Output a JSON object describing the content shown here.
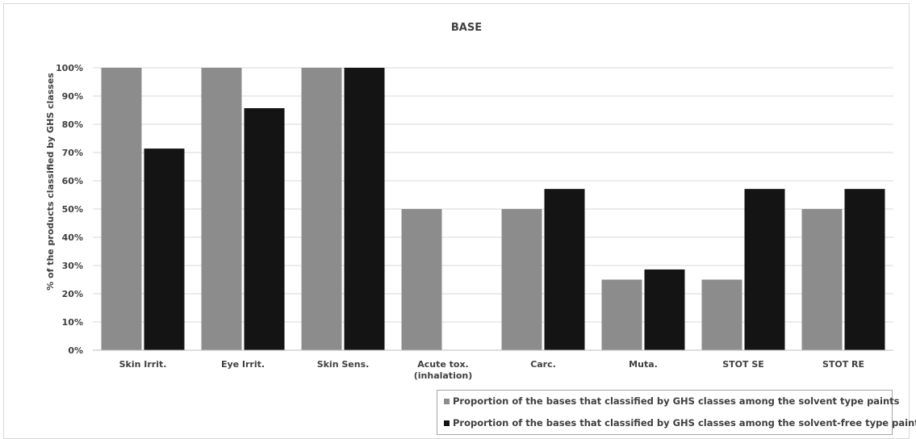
{
  "chart_data": {
    "type": "bar",
    "title": "BASE",
    "ylabel": "% of the products classified by GHS classes",
    "xlabel": "",
    "ylim": [
      0,
      100
    ],
    "yticks": [
      "0%",
      "10%",
      "20%",
      "30%",
      "40%",
      "50%",
      "60%",
      "70%",
      "80%",
      "90%",
      "100%"
    ],
    "categories": [
      [
        "Skin Irrit."
      ],
      [
        "Eye Irrit."
      ],
      [
        "Skin Sens."
      ],
      [
        "Acute tox.",
        "(inhalation)"
      ],
      [
        "Carc."
      ],
      [
        "Muta."
      ],
      [
        "STOT SE"
      ],
      [
        "STOT RE"
      ]
    ],
    "series": [
      {
        "name": "Proportion of the bases that classified by GHS classes among the solvent type paints",
        "color": "#8c8c8c",
        "values": [
          100,
          100,
          100,
          50,
          50,
          25,
          25,
          50
        ]
      },
      {
        "name": "Proportion of the bases that classified by GHS classes among the solvent-free type paints",
        "color": "#141414",
        "values": [
          71.4,
          85.7,
          100,
          0,
          57.1,
          28.6,
          57.1,
          57.1
        ]
      }
    ],
    "grid": true,
    "gridColor": "#d9d9d9",
    "legend": "bottom-right"
  }
}
